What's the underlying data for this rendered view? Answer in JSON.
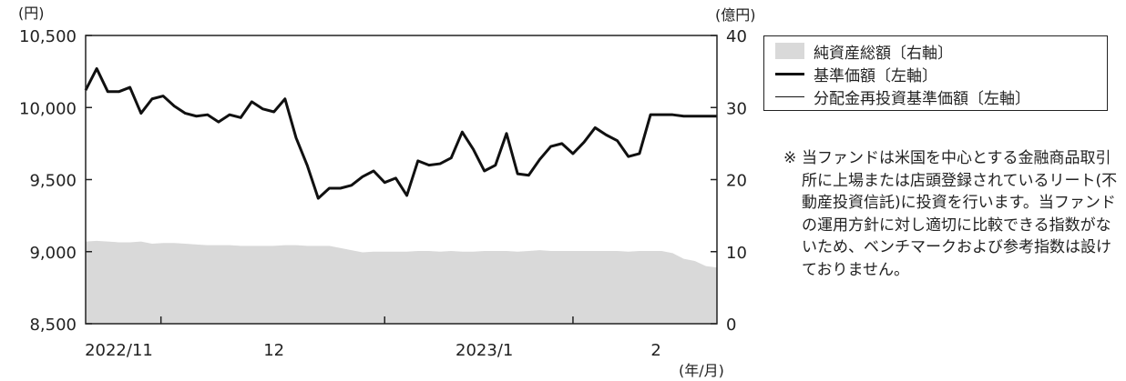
{
  "chart_data": {
    "type": "line",
    "left_axis": {
      "unit": "(円)",
      "ticks": [
        "10,500",
        "10,000",
        "9,500",
        "9,000",
        "8,500"
      ],
      "range": [
        8500,
        10500
      ]
    },
    "right_axis": {
      "unit": "(億円)",
      "ticks": [
        "40",
        "30",
        "20",
        "10",
        "0"
      ],
      "range": [
        0,
        40
      ]
    },
    "x_axis": {
      "unit": "(年/月)",
      "tick_labels": [
        "2022/11",
        "12",
        "2023/1",
        "2"
      ]
    },
    "x_count": 58,
    "series": [
      {
        "name": "純資産総額〔右軸〕",
        "kind": "area",
        "axis": "right",
        "color": "#d9d9d9",
        "values": [
          11.4,
          11.5,
          11.4,
          11.3,
          11.3,
          11.4,
          11.1,
          11.2,
          11.2,
          11.1,
          11.0,
          10.9,
          10.9,
          10.9,
          10.8,
          10.8,
          10.8,
          10.8,
          10.9,
          10.9,
          10.8,
          10.8,
          10.8,
          10.5,
          10.2,
          9.9,
          10.0,
          10.0,
          10.0,
          10.0,
          10.1,
          10.1,
          10.0,
          10.1,
          10.0,
          10.0,
          10.1,
          10.1,
          10.1,
          10.0,
          10.1,
          10.2,
          10.1,
          10.1,
          10.1,
          10.1,
          10.1,
          10.1,
          10.1,
          10.0,
          10.1,
          10.1,
          10.1,
          9.8,
          9.0,
          8.7,
          8.0,
          7.8
        ]
      },
      {
        "name": "基準価額〔左軸〕",
        "kind": "line",
        "axis": "left",
        "color": "#111111",
        "stroke": 3,
        "values": [
          10120,
          10270,
          10110,
          10110,
          10140,
          9960,
          10060,
          10080,
          10010,
          9960,
          9940,
          9950,
          9900,
          9950,
          9930,
          10040,
          9990,
          9970,
          10060,
          9790,
          9600,
          9370,
          9440,
          9440,
          9460,
          9520,
          9560,
          9480,
          9510,
          9390,
          9630,
          9600,
          9610,
          9650,
          9830,
          9710,
          9560,
          9600,
          9820,
          9540,
          9530,
          9640,
          9730,
          9750,
          9680,
          9760,
          9860,
          9810,
          9770,
          9660,
          9680,
          9950,
          9950,
          9950,
          9940,
          9940,
          9940,
          9940
        ]
      },
      {
        "name": "分配金再投資基準価額〔左軸〕",
        "kind": "line",
        "axis": "left",
        "color": "#111111",
        "stroke": 1,
        "values": [
          10120,
          10270,
          10110,
          10110,
          10140,
          9960,
          10060,
          10080,
          10010,
          9960,
          9940,
          9950,
          9900,
          9950,
          9930,
          10040,
          9990,
          9970,
          10060,
          9790,
          9600,
          9370,
          9440,
          9440,
          9460,
          9520,
          9560,
          9480,
          9510,
          9390,
          9630,
          9600,
          9610,
          9650,
          9830,
          9710,
          9560,
          9600,
          9820,
          9540,
          9530,
          9640,
          9730,
          9750,
          9680,
          9760,
          9860,
          9810,
          9770,
          9660,
          9680,
          9950,
          9950,
          9950,
          9940,
          9940,
          9940,
          9940
        ]
      }
    ]
  },
  "legend": {
    "items": [
      {
        "label": "純資産総額〔右軸〕"
      },
      {
        "label": "基準価額〔左軸〕"
      },
      {
        "label": "分配金再投資基準価額〔左軸〕"
      }
    ]
  },
  "note": {
    "mark": "※",
    "text": "当ファンドは米国を中心とする金融商品取引所に上場または店頭登録されているリート(不動産投資信託)に投資を行います。当ファンドの運用方針に対し適切に比較できる指数がないため、ベンチマークおよび参考指数は設けておりません。"
  }
}
